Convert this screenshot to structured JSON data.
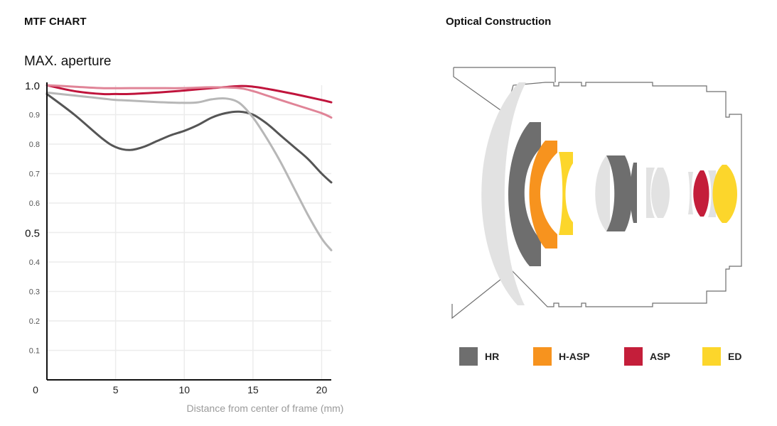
{
  "mtf_title": "MTF CHART",
  "optical_title": "Optical Construction",
  "chart_data": {
    "type": "line",
    "title": "MAX. aperture",
    "xlabel": "Distance from center of frame (mm)",
    "ylabel": "",
    "xlim": [
      0,
      20.7
    ],
    "ylim": [
      0,
      1.0
    ],
    "x_ticks": [
      "0",
      "5",
      "10",
      "15",
      "20"
    ],
    "y_ticks": [
      "0.1",
      "0.2",
      "0.3",
      "0.4",
      "0.5",
      "0.6",
      "0.7",
      "0.8",
      "0.9",
      "1.0"
    ],
    "grid": true,
    "series": [
      {
        "color": "#555555",
        "x": [
          0,
          2,
          4,
          5,
          6,
          7,
          8,
          9,
          10,
          11,
          12,
          13,
          14,
          15,
          16,
          17,
          18,
          19,
          20,
          20.7
        ],
        "values": [
          0.97,
          0.9,
          0.82,
          0.79,
          0.78,
          0.79,
          0.81,
          0.83,
          0.845,
          0.865,
          0.89,
          0.905,
          0.91,
          0.9,
          0.87,
          0.83,
          0.79,
          0.75,
          0.7,
          0.67
        ]
      },
      {
        "color": "#b7b7b7",
        "x": [
          0,
          2,
          4,
          5,
          6,
          8,
          10,
          11,
          12,
          13,
          14,
          15,
          16,
          17,
          18,
          19,
          20,
          20.7
        ],
        "values": [
          0.975,
          0.965,
          0.955,
          0.95,
          0.948,
          0.943,
          0.94,
          0.942,
          0.952,
          0.955,
          0.94,
          0.89,
          0.82,
          0.74,
          0.65,
          0.56,
          0.48,
          0.44
        ]
      },
      {
        "color": "#c0143c",
        "x": [
          0,
          2,
          4,
          5,
          6,
          8,
          10,
          12,
          14,
          15,
          16,
          18,
          20,
          20.7
        ],
        "values": [
          1.0,
          0.98,
          0.97,
          0.97,
          0.97,
          0.975,
          0.982,
          0.99,
          0.997,
          0.995,
          0.988,
          0.97,
          0.95,
          0.942
        ]
      },
      {
        "color": "#e08497",
        "x": [
          0,
          2,
          4,
          6,
          8,
          10,
          12,
          14,
          15,
          16,
          18,
          20,
          20.7
        ],
        "values": [
          1.0,
          0.995,
          0.99,
          0.99,
          0.99,
          0.99,
          0.993,
          0.99,
          0.98,
          0.965,
          0.935,
          0.905,
          0.89
        ]
      }
    ]
  },
  "legend": [
    {
      "label": "HR",
      "color": "#6e6e6e"
    },
    {
      "label": "H-ASP",
      "color": "#f7931e"
    },
    {
      "label": "ASP",
      "color": "#c41e3a"
    },
    {
      "label": "ED",
      "color": "#fcd62b"
    }
  ],
  "lens_colors": {
    "housing": "#6f6f6f",
    "glass": "#e2e2e2",
    "hr": "#6e6e6e",
    "hasp": "#f7931e",
    "asp": "#c41e3a",
    "ed": "#fcd62b"
  }
}
